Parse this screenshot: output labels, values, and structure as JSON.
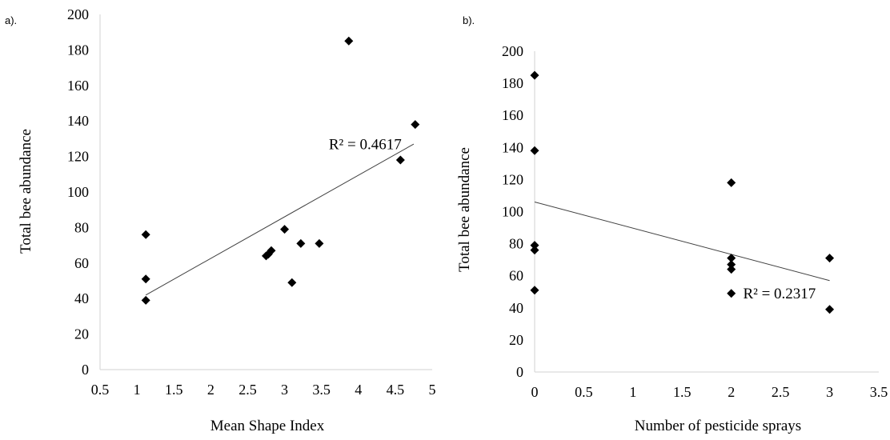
{
  "chart_data": [
    {
      "type": "scatter",
      "panel_label": "a).",
      "xlabel": "Mean Shape Index",
      "ylabel": "Total bee abundance",
      "xlim": [
        0.5,
        5
      ],
      "ylim": [
        0,
        200
      ],
      "xticks": [
        0.5,
        1,
        1.5,
        2,
        2.5,
        3,
        3.5,
        4,
        4.5,
        5
      ],
      "yticks": [
        0,
        20,
        40,
        60,
        80,
        100,
        120,
        140,
        160,
        180,
        200
      ],
      "points": [
        {
          "x": 1.12,
          "y": 76
        },
        {
          "x": 1.12,
          "y": 51
        },
        {
          "x": 1.12,
          "y": 39
        },
        {
          "x": 2.75,
          "y": 64
        },
        {
          "x": 2.78,
          "y": 65
        },
        {
          "x": 2.82,
          "y": 67
        },
        {
          "x": 3.0,
          "y": 79
        },
        {
          "x": 3.1,
          "y": 49
        },
        {
          "x": 3.22,
          "y": 71
        },
        {
          "x": 3.47,
          "y": 71
        },
        {
          "x": 3.87,
          "y": 185
        },
        {
          "x": 4.57,
          "y": 118
        },
        {
          "x": 4.77,
          "y": 138
        }
      ],
      "trendline": {
        "x": [
          1.12,
          4.75
        ],
        "y": [
          42,
          127
        ]
      },
      "r2_label": "R² = 0.4617",
      "r2_anchor": {
        "x": 3.6,
        "y": 124
      },
      "grid": false,
      "legend": "none"
    },
    {
      "type": "scatter",
      "panel_label": "b).",
      "xlabel": "Number of pesticide sprays",
      "ylabel": "Total bee abundance",
      "xlim": [
        0,
        3.5
      ],
      "ylim": [
        0,
        200
      ],
      "xticks": [
        0,
        0.5,
        1,
        1.5,
        2,
        2.5,
        3,
        3.5
      ],
      "yticks": [
        0,
        20,
        40,
        60,
        80,
        100,
        120,
        140,
        160,
        180,
        200
      ],
      "points": [
        {
          "x": 0,
          "y": 185
        },
        {
          "x": 0,
          "y": 138
        },
        {
          "x": 0,
          "y": 79
        },
        {
          "x": 0,
          "y": 76
        },
        {
          "x": 0,
          "y": 51
        },
        {
          "x": 2,
          "y": 118
        },
        {
          "x": 2,
          "y": 71
        },
        {
          "x": 2,
          "y": 67
        },
        {
          "x": 2,
          "y": 64
        },
        {
          "x": 2,
          "y": 49
        },
        {
          "x": 3,
          "y": 71
        },
        {
          "x": 3,
          "y": 39
        }
      ],
      "trendline": {
        "x": [
          0,
          3
        ],
        "y": [
          106,
          57
        ]
      },
      "r2_label": "R² = 0.2317",
      "r2_anchor": {
        "x": 2.12,
        "y": 46
      },
      "grid": false,
      "legend": "none"
    }
  ]
}
